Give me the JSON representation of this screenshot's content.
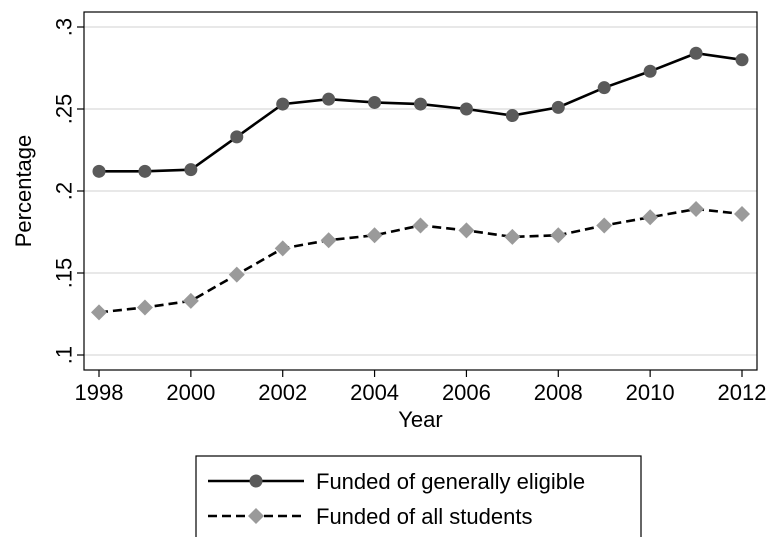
{
  "chart_data": {
    "type": "line",
    "xlabel": "Year",
    "ylabel": "Percentage",
    "xlim": [
      1998,
      2012
    ],
    "ylim": [
      0.1,
      0.3
    ],
    "x_ticks": [
      1998,
      2000,
      2002,
      2004,
      2006,
      2008,
      2010,
      2012
    ],
    "x_tick_labels": [
      "1998",
      "2000",
      "2002",
      "2004",
      "2006",
      "2008",
      "2010",
      "2012"
    ],
    "y_ticks": [
      0.1,
      0.15,
      0.2,
      0.25,
      0.3
    ],
    "y_tick_labels": [
      ".1",
      ".15",
      ".2",
      ".25",
      ".3"
    ],
    "grid": "horizontal",
    "legend_position": "bottom",
    "x": [
      1998,
      1999,
      2000,
      2001,
      2002,
      2003,
      2004,
      2005,
      2006,
      2007,
      2008,
      2009,
      2010,
      2011,
      2012
    ],
    "series": [
      {
        "name": "Funded of generally eligible",
        "values": [
          0.212,
          0.212,
          0.213,
          0.233,
          0.253,
          0.256,
          0.254,
          0.253,
          0.25,
          0.246,
          0.251,
          0.263,
          0.273,
          0.284,
          0.28
        ],
        "line_style": "solid",
        "marker": "circle",
        "line_color": "#000000",
        "marker_color": "#5a5a5a"
      },
      {
        "name": "Funded of all students",
        "values": [
          0.126,
          0.129,
          0.133,
          0.149,
          0.165,
          0.17,
          0.173,
          0.179,
          0.176,
          0.172,
          0.173,
          0.179,
          0.184,
          0.189,
          0.186
        ],
        "line_style": "dashed",
        "marker": "diamond",
        "line_color": "#000000",
        "marker_color": "#9a9a9a"
      }
    ]
  }
}
